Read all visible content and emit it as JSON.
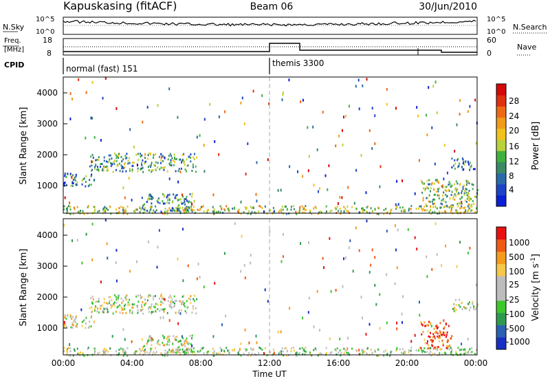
{
  "header": {
    "station": "Kapuskasing (fitACF)",
    "beam": "Beam 06",
    "date": "30/Jun/2010"
  },
  "noise_panel": {
    "left_label": "N.Sky",
    "right_label": "N.Search",
    "left_ticks": [
      "10^5",
      "10^0"
    ],
    "right_ticks": [
      "10^5",
      "10^0"
    ]
  },
  "freq_panel": {
    "left_label_1": "Freq.",
    "left_label_2": "[MHz]",
    "right_label": "Nave",
    "left_ticks": [
      "18",
      "8"
    ],
    "right_ticks": [
      "60",
      "0"
    ]
  },
  "cpid_panel": {
    "label": "CPID",
    "modes": [
      {
        "name": "normal (fast) 151",
        "start_hour": 0
      },
      {
        "name": "themis 3300",
        "start_hour": 12
      }
    ]
  },
  "colors": {
    "power_scale": [
      "#0a1fd6",
      "#1f43c8",
      "#2a6aa8",
      "#3a8a64",
      "#3fb13f",
      "#b9d13a",
      "#f0c21a",
      "#f09a18",
      "#ee6a12",
      "#e0300f",
      "#d40808"
    ],
    "velocity_scale": [
      "#e81010",
      "#f05a12",
      "#f59a1c",
      "#f5c84a",
      "#bdbdbd",
      "#bdbdbd",
      "#3cc82a",
      "#2e9a4e",
      "#2a60b4",
      "#1830c4"
    ]
  },
  "chart_data": [
    {
      "type": "heatmap",
      "title": "",
      "xlabel": "",
      "ylabel": "Slant Range [km]",
      "xlim_hours": [
        0,
        24
      ],
      "ylim_km": [
        180,
        4600
      ],
      "yticks": [
        "1000",
        "2000",
        "3000",
        "4000"
      ],
      "xticks": [
        "00:00",
        "04:00",
        "08:00",
        "12:00",
        "16:00",
        "20:00",
        "00:00"
      ],
      "colorbar_label": "Power [dB]",
      "colorbar_ticks": [
        "4",
        "8",
        "12",
        "16",
        "20",
        "24",
        "28"
      ],
      "colorbar_range": [
        0,
        30
      ],
      "echo_bands": [
        {
          "t0": 0.0,
          "t1": 1.8,
          "r0": 1050,
          "r1": 1500,
          "level": 0.25
        },
        {
          "t0": 1.5,
          "t1": 7.8,
          "r0": 1550,
          "r1": 2150,
          "level": 0.35
        },
        {
          "t0": 4.5,
          "t1": 7.5,
          "r0": 250,
          "r1": 850,
          "level": 0.3
        },
        {
          "t0": 0.0,
          "t1": 24.0,
          "r0": 180,
          "r1": 450,
          "level": 0.5
        },
        {
          "t0": 20.7,
          "t1": 24.0,
          "r0": 400,
          "r1": 1300,
          "level": 0.45
        },
        {
          "t0": 22.5,
          "t1": 24.0,
          "r0": 1600,
          "r1": 2000,
          "level": 0.25
        }
      ]
    },
    {
      "type": "heatmap",
      "title": "",
      "xlabel": "Time UT",
      "ylabel": "Slant Range [km]",
      "xlim_hours": [
        0,
        24
      ],
      "ylim_km": [
        180,
        4600
      ],
      "yticks": [
        "1000",
        "2000",
        "3000",
        "4000"
      ],
      "xticks": [
        "00:00",
        "04:00",
        "08:00",
        "12:00",
        "16:00",
        "20:00",
        "00:00"
      ],
      "colorbar_label": "Velocity [m s^-1]",
      "colorbar_ticks": [
        "1000",
        "500",
        "100",
        "25",
        "-25",
        "-100",
        "-500",
        "-1000"
      ],
      "colorbar_range": [
        -1000,
        1000
      ],
      "echo_bands": [
        {
          "t0": 0.0,
          "t1": 1.8,
          "r0": 1050,
          "r1": 1500,
          "level": 0.45
        },
        {
          "t0": 1.5,
          "t1": 7.8,
          "r0": 1550,
          "r1": 2150,
          "level": 0.5
        },
        {
          "t0": 4.5,
          "t1": 7.5,
          "r0": 250,
          "r1": 850,
          "level": 0.5
        },
        {
          "t0": 0.0,
          "t1": 24.0,
          "r0": 180,
          "r1": 450,
          "level": 0.55
        },
        {
          "t0": 20.7,
          "t1": 22.5,
          "r0": 400,
          "r1": 1300,
          "level": 0.15
        },
        {
          "t0": 22.5,
          "t1": 24.0,
          "r0": 1600,
          "r1": 2000,
          "level": 0.5
        }
      ]
    }
  ]
}
